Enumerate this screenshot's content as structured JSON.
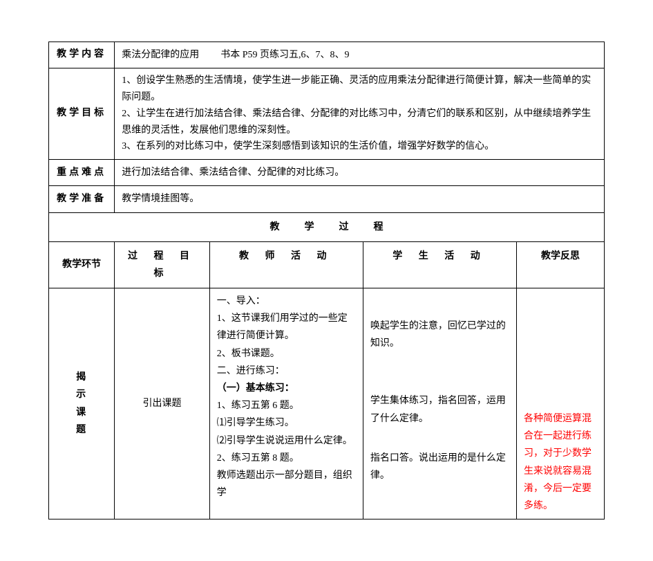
{
  "labels": {
    "content": "教学内容",
    "objectives": "教学目标",
    "keypoints": "重点难点",
    "preparation": "教学准备",
    "process_header": "教学过程",
    "stage": "教学环节",
    "proc_goal": "过 程 目 标",
    "teacher_act": "教 师 活 动",
    "student_act": "学 生 活 动",
    "reflection": "教学反思"
  },
  "content_text": "乘法分配律的应用",
  "content_ref": "书本 P59 页练习五,6、7、8、9",
  "objectives": {
    "item1": "1、创设学生熟悉的生活情境，使学生进一步能正确、灵活的应用乘法分配律进行简便计算，解决一些简单的实际问题。",
    "item2": "2、让学生在进行加法结合律、乘法结合律、分配律的对比练习中，分清它们的联系和区别，从中继续培养学生思维的灵活性，发展他们思维的深刻性。",
    "item3": "3、在系列的对比练习中，使学生深刻感悟到该知识的生活价值，增强学好数学的信心。"
  },
  "keypoints_text": "进行加法结合律、乘法结合律、分配律的对比练习。",
  "preparation_text": "教学情境挂图等。",
  "stage1": {
    "label_chars": [
      "揭",
      "示",
      "课",
      "题"
    ],
    "goal": "引出课题",
    "teacher": {
      "l1": "一、导入：",
      "l2": "1、这节课我们用学过的一些定律进行简便计算。",
      "l3": "2、板书课题。",
      "l4": "二、进行练习：",
      "l5": "（一）基本练习：",
      "l6": "1、练习五第 6 题。",
      "l7": "⑴引导学生练习。",
      "l8": "⑵引导学生说说运用什么定律。",
      "l9": "2、练习五第 8 题。",
      "l10": "教师选题出示一部分题目，组织学"
    },
    "student": {
      "s1": "唤起学生的注意，回忆已学过的知识。",
      "s2": "学生集体练习，指名回答，运用了什么定律。",
      "s3": "指名口答。说出运用的是什么定律。"
    },
    "reflection": {
      "r1": "各种简便运算混合在一起进行练习，对于少数学生来说就容易混淆，今后一定要多练。"
    }
  },
  "colors": {
    "text": "#000000",
    "highlight": "#ff0000",
    "background": "#ffffff",
    "border": "#000000"
  }
}
